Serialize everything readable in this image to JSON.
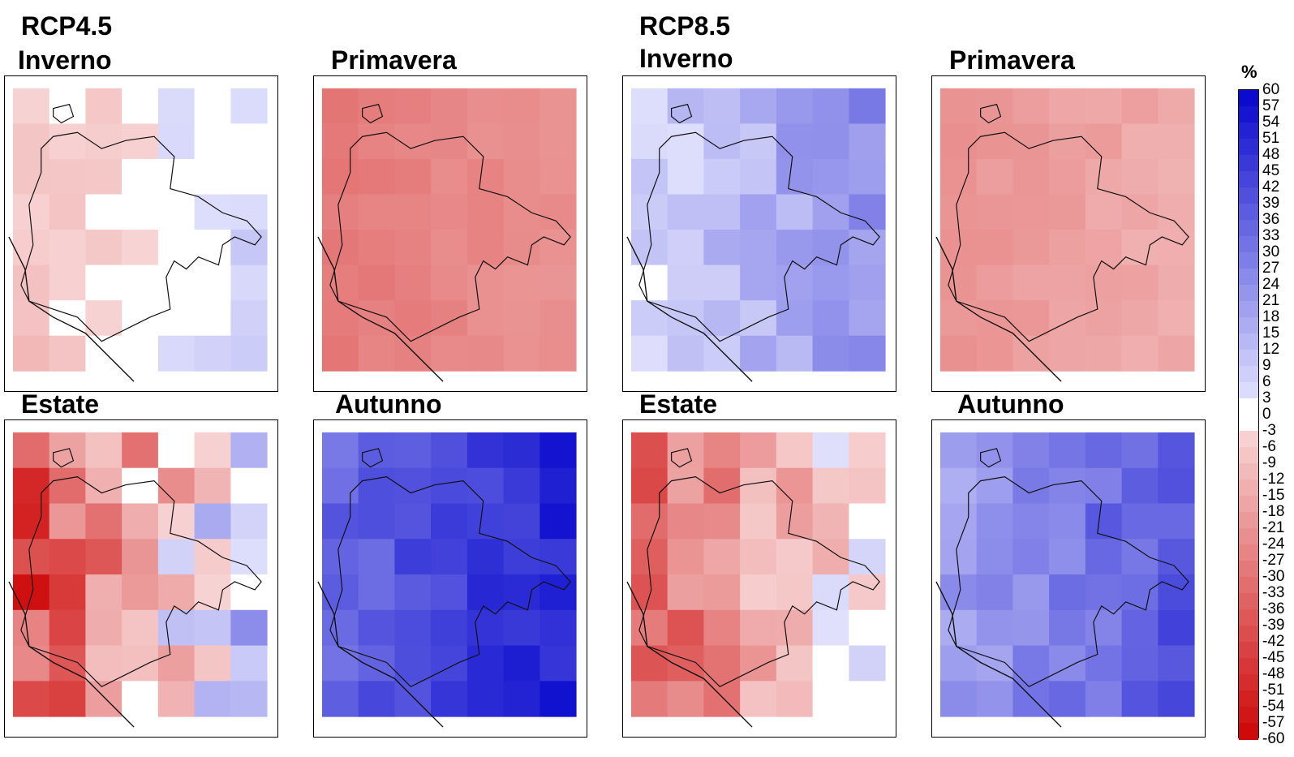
{
  "scenarios": {
    "rcp45": "RCP4.5",
    "rcp85": "RCP8.5"
  },
  "panels": [
    {
      "id": "p45-inverno",
      "season": "Inverno"
    },
    {
      "id": "p45-primavera",
      "season": "Primavera"
    },
    {
      "id": "p85-inverno",
      "season": "Inverno"
    },
    {
      "id": "p85-primavera",
      "season": "Primavera"
    },
    {
      "id": "p45-estate",
      "season": "Estate"
    },
    {
      "id": "p45-autunno",
      "season": "Autunno"
    },
    {
      "id": "p85-estate",
      "season": "Estate"
    },
    {
      "id": "p85-autunno",
      "season": "Autunno"
    }
  ],
  "colorbar": {
    "unit": "%",
    "ticks": [
      "60",
      "57",
      "54",
      "51",
      "48",
      "45",
      "42",
      "39",
      "36",
      "33",
      "30",
      "27",
      "24",
      "21",
      "18",
      "15",
      "12",
      "9",
      "6",
      "3",
      "0",
      "-3",
      "-6",
      "-9",
      "-12",
      "-15",
      "-18",
      "-21",
      "-24",
      "-27",
      "-30",
      "-33",
      "-36",
      "-39",
      "-42",
      "-45",
      "-48",
      "-51",
      "-54",
      "-57",
      "-60"
    ],
    "colors": {
      "max": "#0000cc",
      "zero": "#ffffff",
      "min": "#cc0000"
    }
  },
  "map_fields": {
    "p45-inverno": {
      "min": -12,
      "max": 10,
      "mean": -8
    },
    "p45-primavera": {
      "min": -30,
      "max": -20,
      "mean": -24
    },
    "p85-inverno": {
      "min": 0,
      "max": 30,
      "mean": 12
    },
    "p85-primavera": {
      "min": -24,
      "max": -12,
      "mean": -18
    },
    "p45-estate": {
      "min": -60,
      "max": 30,
      "mean": -25
    },
    "p45-autunno": {
      "min": 30,
      "max": 57,
      "mean": 45
    },
    "p85-estate": {
      "min": -45,
      "max": 12,
      "mean": -20
    },
    "p85-autunno": {
      "min": 15,
      "max": 45,
      "mean": 30
    }
  }
}
